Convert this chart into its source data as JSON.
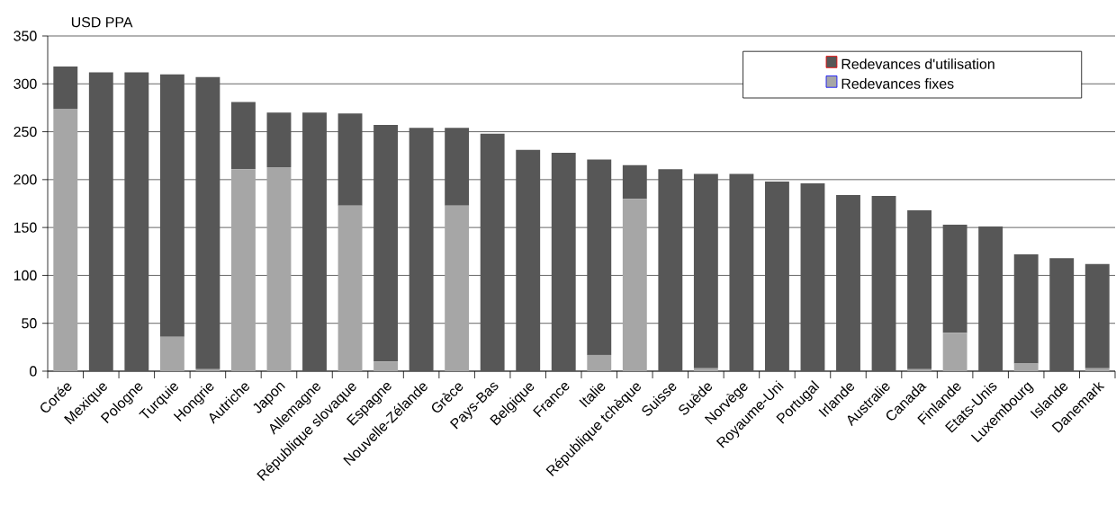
{
  "chart_data": {
    "type": "bar",
    "stacked": true,
    "ylabel": "USD PPA",
    "categories": [
      "Corée",
      "Mexique",
      "Pologne",
      "Turquie",
      "Hongrie",
      "Autriche",
      "Japon",
      "Allemagne",
      "République slovaque",
      "Espagne",
      "Nouvelle-Zélande",
      "Grèce",
      "Pays-Bas",
      "Belgique",
      "France",
      "Italie",
      "République tchèque",
      "Suisse",
      "Suède",
      "Norvège",
      "Royaume-Uni",
      "Portugal",
      "Irlande",
      "Australie",
      "Canada",
      "Finlande",
      "Etats-Unis",
      "Luxembourg",
      "Islande",
      "Danemark"
    ],
    "series": [
      {
        "name": "Redevances fixes",
        "color": "#a6a6a6",
        "values": [
          274,
          0,
          0,
          36,
          2,
          211,
          213,
          0,
          173,
          10,
          0,
          173,
          0,
          0,
          0,
          17,
          180,
          0,
          3,
          0,
          0,
          0,
          0,
          0,
          2,
          40,
          0,
          8,
          0,
          3
        ]
      },
      {
        "name": "Redevances d'utilisation",
        "color": "#575757",
        "values": [
          44,
          312,
          312,
          274,
          305,
          70,
          57,
          270,
          96,
          247,
          254,
          81,
          248,
          231,
          228,
          204,
          35,
          211,
          203,
          206,
          198,
          196,
          184,
          183,
          166,
          113,
          151,
          114,
          118,
          109
        ]
      }
    ],
    "ylim": [
      0,
      350
    ],
    "yticks": [
      0,
      50,
      100,
      150,
      200,
      250,
      300,
      350
    ],
    "grid": "y",
    "legend": "top"
  }
}
